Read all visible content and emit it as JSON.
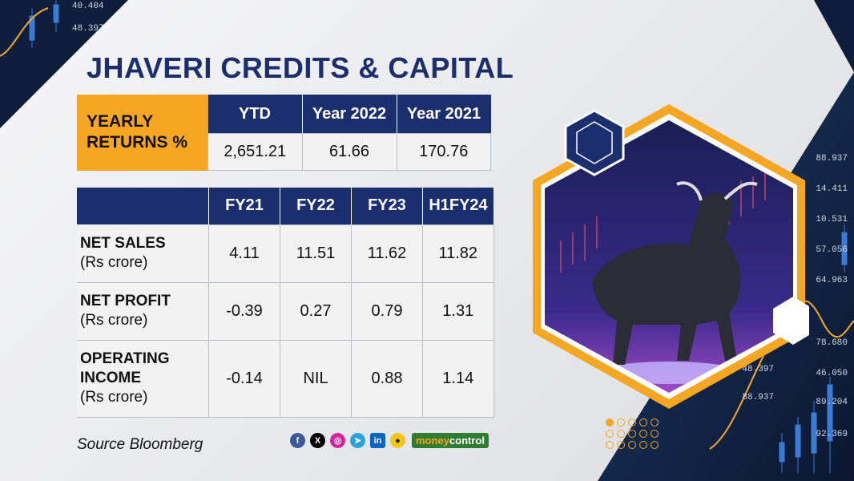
{
  "title": "JHAVERI CREDITS & CAPITAL",
  "returns": {
    "label": "YEARLY RETURNS %",
    "headers": [
      "YTD",
      "Year 2022",
      "Year 2021"
    ],
    "values": [
      "2,651.21",
      "61.66",
      "170.76"
    ]
  },
  "financials": {
    "headers": [
      "FY21",
      "FY22",
      "FY23",
      "H1FY24"
    ],
    "rows": [
      {
        "label_line1": "NET SALES",
        "label_line2": "(Rs crore)",
        "label_line3": "",
        "values": [
          "4.11",
          "11.51",
          "11.62",
          "11.82"
        ]
      },
      {
        "label_line1": "NET PROFIT",
        "label_line2": "(Rs crore)",
        "label_line3": "",
        "values": [
          "-0.39",
          "0.27",
          "0.79",
          "1.31"
        ]
      },
      {
        "label_line1": "OPERATING",
        "label_line2": "INCOME",
        "label_line3": "(Rs crore)",
        "values": [
          "-0.14",
          "NIL",
          "0.88",
          "1.14"
        ]
      }
    ]
  },
  "source": "Source Bloomberg",
  "brand": {
    "money": "money",
    "control": "control"
  },
  "background_numbers": [
    "40.404",
    "48.397",
    "88.937",
    "14.411",
    "10.531",
    "57.056",
    "64.963",
    "78.680",
    "46.050",
    "48.397",
    "89.204",
    "88.937",
    "92.369"
  ],
  "colors": {
    "navy": "#1b2f6e",
    "orange": "#f5a623",
    "dark_bg": "#0e1e3c"
  }
}
